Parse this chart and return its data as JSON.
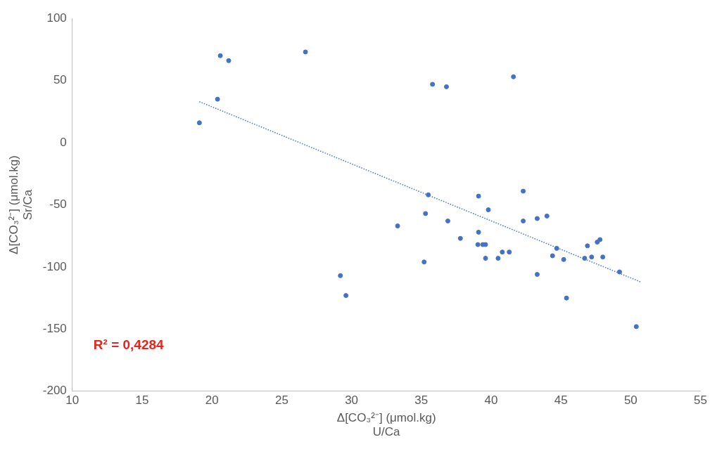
{
  "chart_data": {
    "type": "scatter",
    "xlabel": "Δ[CO₃²⁻] (μmol.kg)\nU/Ca",
    "ylabel": "Δ[CO₃²⁻] (μmol.kg)\nSr/Ca",
    "xlim": [
      10,
      55
    ],
    "xticks": [
      10,
      15,
      20,
      25,
      30,
      35,
      40,
      45,
      50,
      55
    ],
    "ylim": [
      -200,
      100
    ],
    "yticks": [
      -200,
      -150,
      -100,
      -50,
      0,
      50,
      100
    ],
    "grid": false,
    "legend": false,
    "marker": "circle",
    "annotations": [
      "R² = 0,4284"
    ],
    "series": [
      {
        "color": "#4472c4",
        "x": [
          19.1,
          20.4,
          20.6,
          21.2,
          26.7,
          29.2,
          29.6,
          33.3,
          35.2,
          35.3,
          35.5,
          35.8,
          36.8,
          36.9,
          37.8,
          39.1,
          39.1,
          39.05,
          39.4,
          39.6,
          39.6,
          39.8,
          40.5,
          40.8,
          41.3,
          41.6,
          42.3,
          42.3,
          43.3,
          43.3,
          44.0,
          44.4,
          44.7,
          45.2,
          45.4,
          46.7,
          46.9,
          47.2,
          47.6,
          47.8,
          48.0,
          49.2,
          50.4
        ],
        "values": [
          16,
          35,
          70,
          66,
          73,
          -107,
          -123,
          -67,
          -96,
          -57,
          -42,
          47,
          45,
          -63,
          -77,
          -43,
          -72,
          -82,
          -82,
          -82,
          -93,
          -54,
          -93,
          -88,
          -88,
          53,
          -39,
          -63,
          -61,
          -106,
          -59,
          -91,
          -85,
          -94,
          -125,
          -93,
          -83,
          -92,
          -80,
          -78,
          -92,
          -104,
          -148
        ]
      },
      {
        "type": "line",
        "color": "#4472c4",
        "line_style": "dotted",
        "marker": "none",
        "x": [
          19.1,
          50.7
        ],
        "values": [
          33,
          -112
        ]
      }
    ]
  }
}
